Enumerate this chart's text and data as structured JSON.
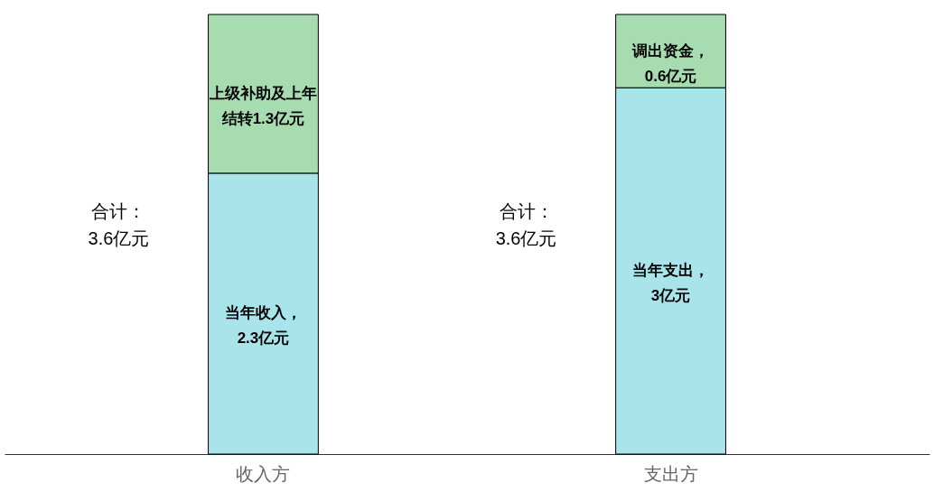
{
  "chart_data": {
    "type": "bar",
    "stacked": true,
    "categories": [
      "收入方",
      "支出方"
    ],
    "series": [
      {
        "color": "#a8e4ea",
        "values": [
          2.3,
          3
        ],
        "value_labels": [
          "当年收入，2.3亿元",
          "当年支出，3亿元"
        ]
      },
      {
        "color": "#a6dcb0",
        "values": [
          1.3,
          0.6
        ],
        "value_labels": [
          "上级补助及上年结转1.3亿元",
          "调出资金，0.6亿元"
        ]
      }
    ],
    "annotations": [
      "合计：3.6亿元",
      "合计：3.6亿元"
    ],
    "legend": false
  }
}
